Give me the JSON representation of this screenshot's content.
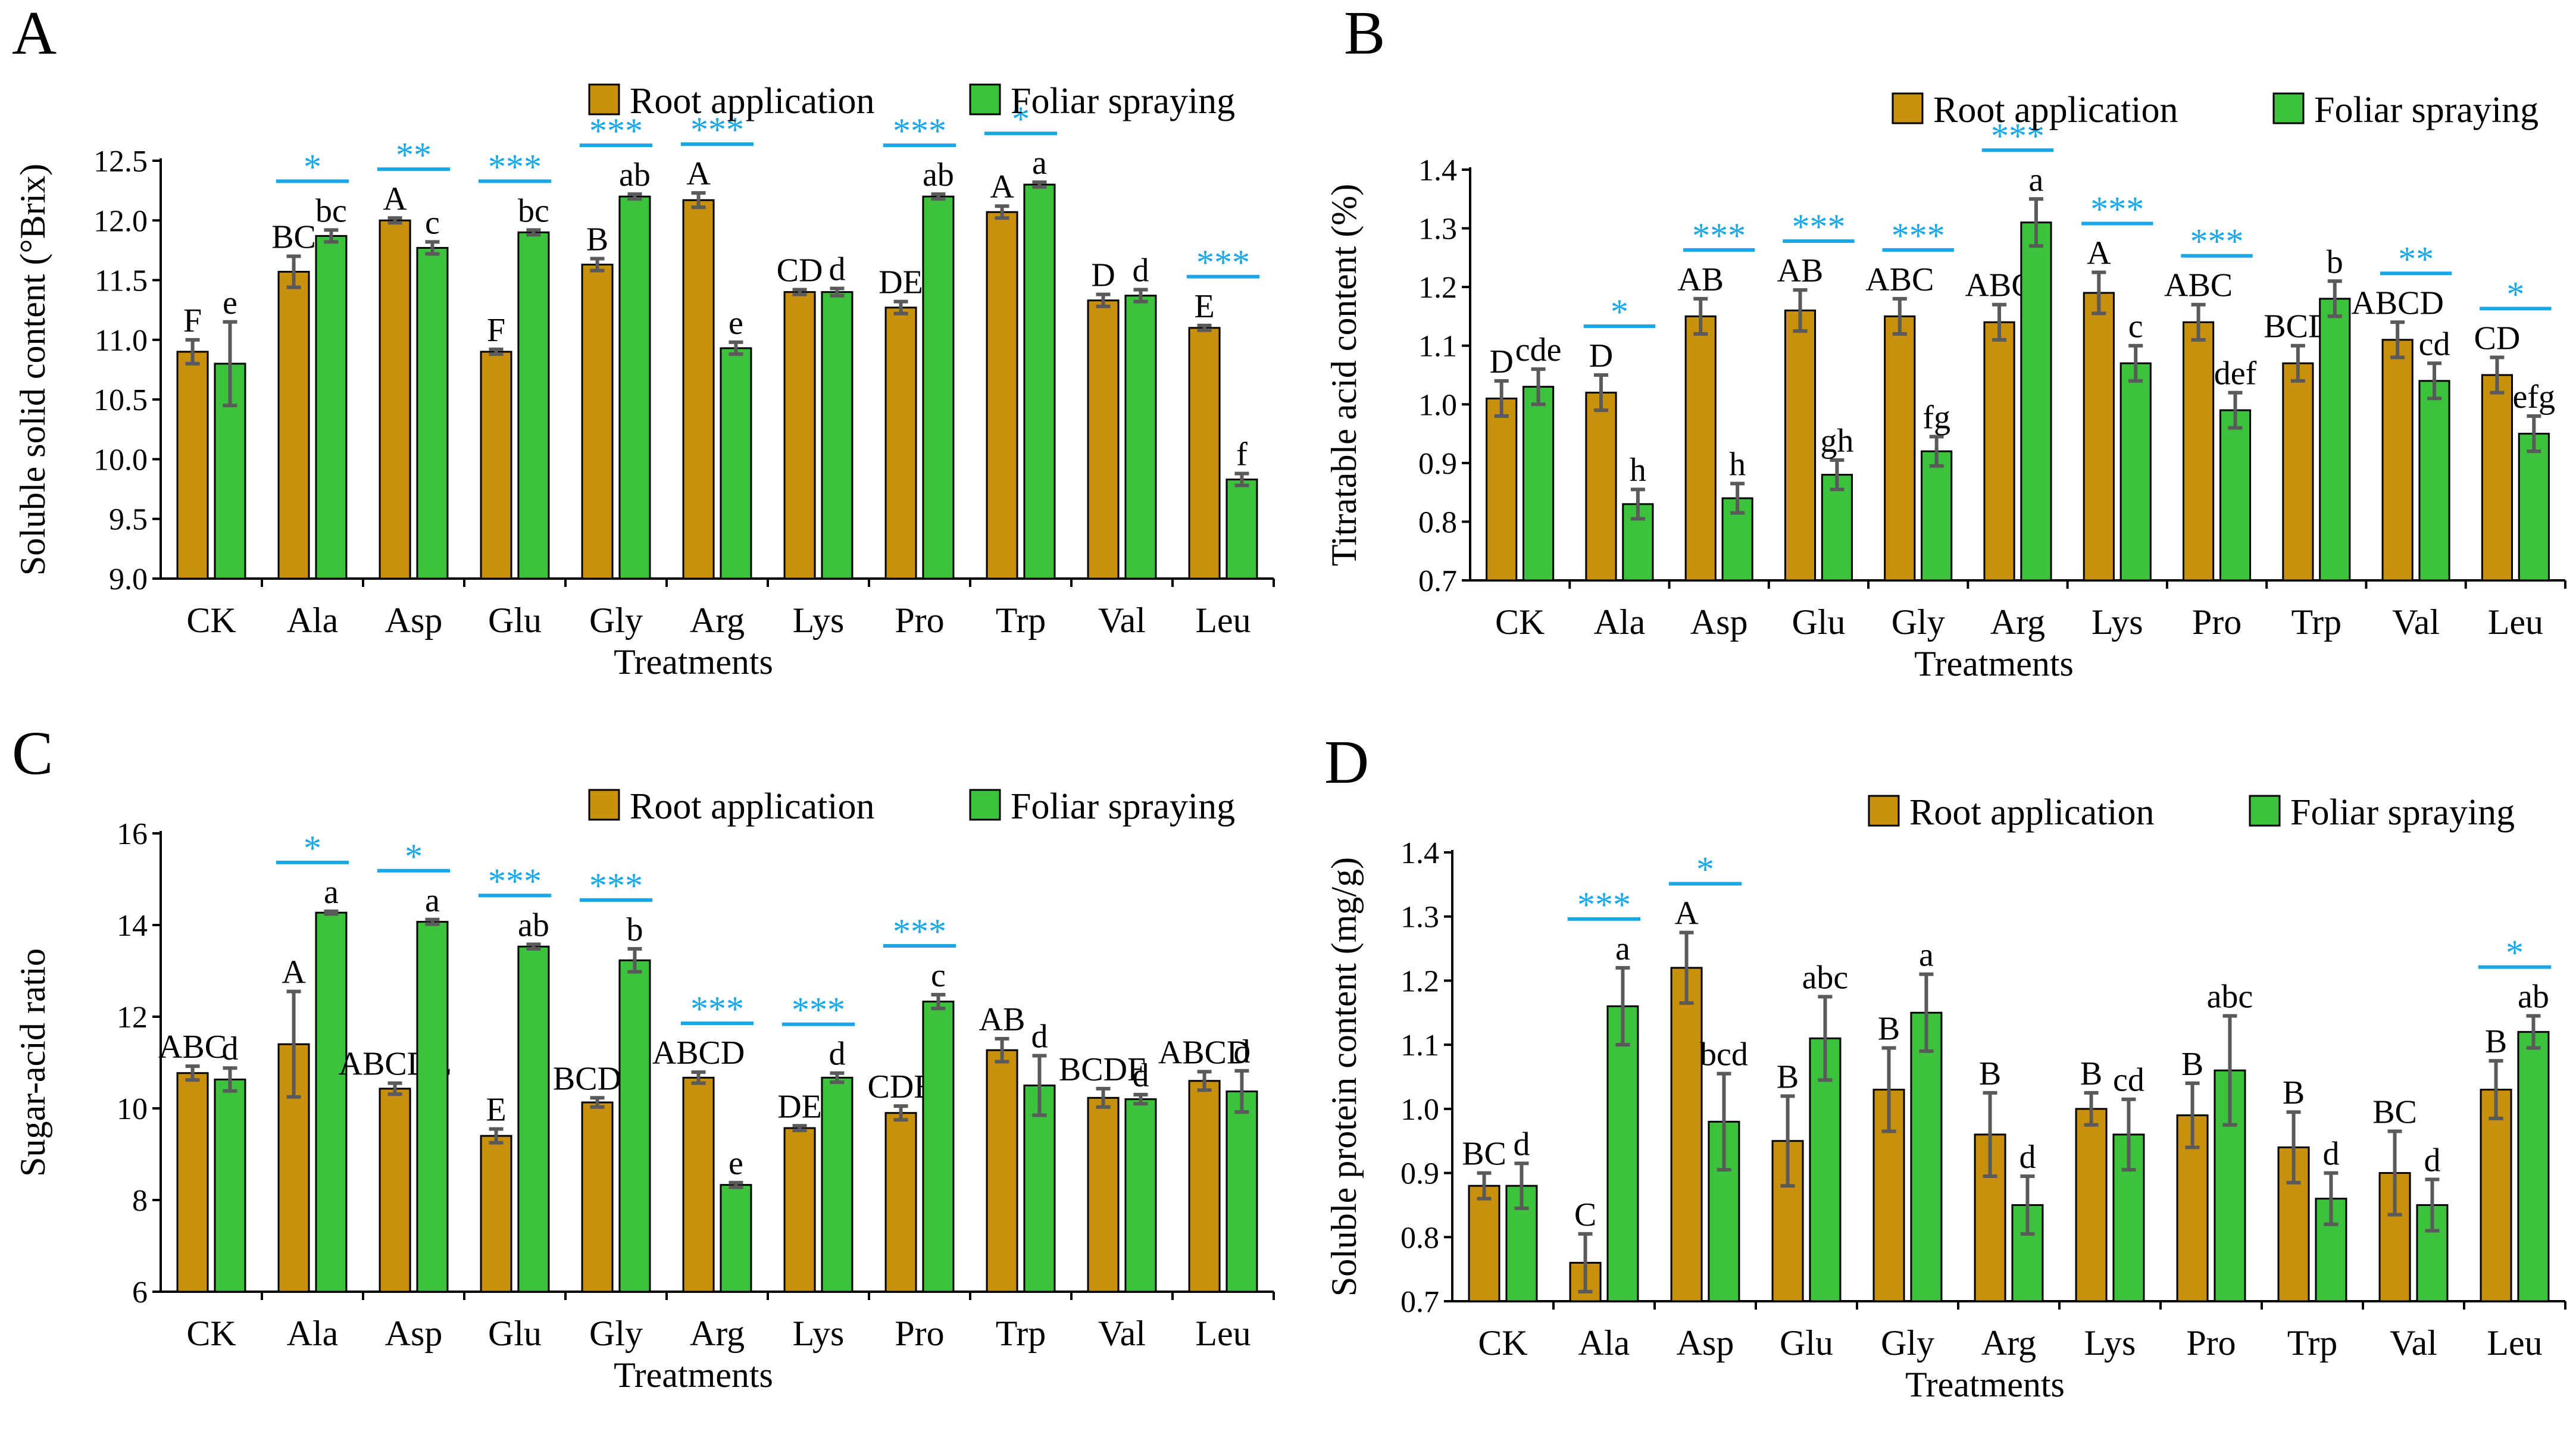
{
  "colors": {
    "root": "#c8900c",
    "foliar": "#3dc23d",
    "star": "#1aa7e8",
    "error_bar": "#5a5a5a",
    "axis": "#000000"
  },
  "legend": {
    "root_label": "Root application",
    "foliar_label": "Foliar spraying"
  },
  "chart_data": [
    {
      "panel": "A",
      "type": "bar",
      "legend_position": "top-right",
      "xlabel": "Treatments",
      "ylabel": "Soluble solid content (°Brix)",
      "ylim": [
        9.0,
        12.5
      ],
      "yticks": [
        "9.0",
        "9.5",
        "10.0",
        "10.5",
        "11.0",
        "11.5",
        "12.0",
        "12.5"
      ],
      "categories": [
        "CK",
        "Ala",
        "Asp",
        "Glu",
        "Gly",
        "Arg",
        "Lys",
        "Pro",
        "Trp",
        "Val",
        "Leu"
      ],
      "series": [
        {
          "name": "Root application",
          "values": [
            10.9,
            11.57,
            12.0,
            10.9,
            11.63,
            12.17,
            11.4,
            11.27,
            12.07,
            11.33,
            11.1
          ],
          "errors": [
            0.1,
            0.13,
            0.02,
            0.02,
            0.05,
            0.06,
            0.02,
            0.05,
            0.05,
            0.05,
            0.02
          ],
          "letters": [
            "F",
            "BC",
            "A",
            "F",
            "B",
            "A",
            "CD",
            "DE",
            "A",
            "D",
            "E"
          ]
        },
        {
          "name": "Foliar spraying",
          "values": [
            10.8,
            11.87,
            11.77,
            11.9,
            12.2,
            10.93,
            11.4,
            12.2,
            12.3,
            11.37,
            9.83
          ],
          "errors": [
            0.35,
            0.05,
            0.05,
            0.02,
            0.02,
            0.05,
            0.03,
            0.02,
            0.02,
            0.05,
            0.05
          ],
          "letters": [
            "e",
            "bc",
            "c",
            "bc",
            "ab",
            "e",
            "d",
            "ab",
            "a",
            "d",
            "f"
          ]
        }
      ],
      "significance": [
        "",
        "*",
        "**",
        "***",
        "***",
        "***",
        "",
        "***",
        "*",
        "",
        "***"
      ]
    },
    {
      "panel": "B",
      "type": "bar",
      "legend_position": "top-right",
      "xlabel": "Treatments",
      "ylabel": "Titratable acid content (%)",
      "ylim": [
        0.7,
        1.4
      ],
      "yticks": [
        "0.7",
        "0.8",
        "0.9",
        "1.0",
        "1.1",
        "1.2",
        "1.3",
        "1.4"
      ],
      "categories": [
        "CK",
        "Ala",
        "Asp",
        "Glu",
        "Gly",
        "Arg",
        "Lys",
        "Pro",
        "Trp",
        "Val",
        "Leu"
      ],
      "series": [
        {
          "name": "Root application",
          "values": [
            1.01,
            1.02,
            1.15,
            1.16,
            1.15,
            1.14,
            1.19,
            1.14,
            1.07,
            1.11,
            1.05
          ],
          "errors": [
            0.03,
            0.03,
            0.03,
            0.035,
            0.03,
            0.03,
            0.035,
            0.03,
            0.03,
            0.03,
            0.03
          ],
          "letters": [
            "D",
            "D",
            "AB",
            "AB",
            "ABC",
            "ABC",
            "A",
            "ABC",
            "BCD",
            "ABCD",
            "CD"
          ]
        },
        {
          "name": "Foliar spraying",
          "values": [
            1.03,
            0.83,
            0.84,
            0.88,
            0.92,
            1.31,
            1.07,
            0.99,
            1.18,
            1.04,
            0.95
          ],
          "errors": [
            0.03,
            0.025,
            0.025,
            0.025,
            0.025,
            0.04,
            0.03,
            0.03,
            0.03,
            0.03,
            0.03
          ],
          "letters": [
            "cde",
            "h",
            "h",
            "gh",
            "fg",
            "a",
            "c",
            "def",
            "b",
            "cd",
            "efg"
          ]
        }
      ],
      "significance": [
        "",
        "*",
        "***",
        "***",
        "***",
        "***",
        "***",
        "***",
        "",
        "**",
        "*"
      ]
    },
    {
      "panel": "C",
      "type": "bar",
      "legend_position": "top-right",
      "xlabel": "Treatments",
      "ylabel": "Sugar-acid ratio",
      "ylim": [
        6,
        16
      ],
      "yticks": [
        "6",
        "8",
        "10",
        "12",
        "14",
        "16"
      ],
      "categories": [
        "CK",
        "Ala",
        "Asp",
        "Glu",
        "Gly",
        "Arg",
        "Lys",
        "Pro",
        "Trp",
        "Val",
        "Leu"
      ],
      "series": [
        {
          "name": "Root application",
          "values": [
            10.77,
            11.4,
            10.43,
            9.4,
            10.13,
            10.67,
            9.57,
            9.9,
            11.27,
            10.23,
            10.6
          ],
          "errors": [
            0.15,
            1.15,
            0.12,
            0.15,
            0.1,
            0.12,
            0.05,
            0.15,
            0.25,
            0.2,
            0.2
          ],
          "letters": [
            "ABC",
            "A",
            "ABCDE",
            "E",
            "BCDE",
            "ABCD",
            "DE",
            "CDE",
            "AB",
            "BCDE",
            "ABCD"
          ]
        },
        {
          "name": "Foliar spraying",
          "values": [
            10.63,
            14.27,
            14.07,
            13.53,
            13.23,
            8.33,
            10.67,
            12.33,
            10.5,
            10.2,
            10.37
          ],
          "errors": [
            0.25,
            0.03,
            0.05,
            0.05,
            0.25,
            0.05,
            0.1,
            0.15,
            0.65,
            0.1,
            0.45
          ],
          "letters": [
            "d",
            "a",
            "a",
            "ab",
            "b",
            "e",
            "d",
            "c",
            "d",
            "d",
            "d"
          ]
        }
      ],
      "significance": [
        "",
        "*",
        "*",
        "***",
        "***",
        "***",
        "***",
        "***",
        "",
        "",
        ""
      ]
    },
    {
      "panel": "D",
      "type": "bar",
      "legend_position": "top-right",
      "xlabel": "Treatments",
      "ylabel": "Soluble protein content (mg/g)",
      "ylim": [
        0.7,
        1.4
      ],
      "yticks": [
        "0.7",
        "0.8",
        "0.9",
        "1.0",
        "1.1",
        "1.2",
        "1.3",
        "1.4"
      ],
      "categories": [
        "CK",
        "Ala",
        "Asp",
        "Glu",
        "Gly",
        "Arg",
        "Lys",
        "Pro",
        "Trp",
        "Val",
        "Leu"
      ],
      "series": [
        {
          "name": "Root application",
          "values": [
            0.88,
            0.76,
            1.22,
            0.95,
            1.03,
            0.96,
            1.0,
            0.99,
            0.94,
            0.9,
            1.03
          ],
          "errors": [
            0.02,
            0.045,
            0.055,
            0.07,
            0.065,
            0.065,
            0.025,
            0.05,
            0.055,
            0.065,
            0.045
          ],
          "letters": [
            "BC",
            "C",
            "A",
            "B",
            "B",
            "B",
            "B",
            "B",
            "B",
            "BC",
            "B"
          ]
        },
        {
          "name": "Foliar spraying",
          "values": [
            0.88,
            1.16,
            0.98,
            1.11,
            1.15,
            0.85,
            0.96,
            1.06,
            0.86,
            0.85,
            1.12
          ],
          "errors": [
            0.035,
            0.06,
            0.075,
            0.065,
            0.06,
            0.045,
            0.055,
            0.085,
            0.04,
            0.04,
            0.025
          ],
          "letters": [
            "d",
            "a",
            "bcd",
            "abc",
            "a",
            "d",
            "cd",
            "abc",
            "d",
            "d",
            "ab"
          ]
        }
      ],
      "significance": [
        "",
        "***",
        "*",
        "",
        "",
        "",
        "",
        "",
        "",
        "",
        "*"
      ]
    }
  ]
}
